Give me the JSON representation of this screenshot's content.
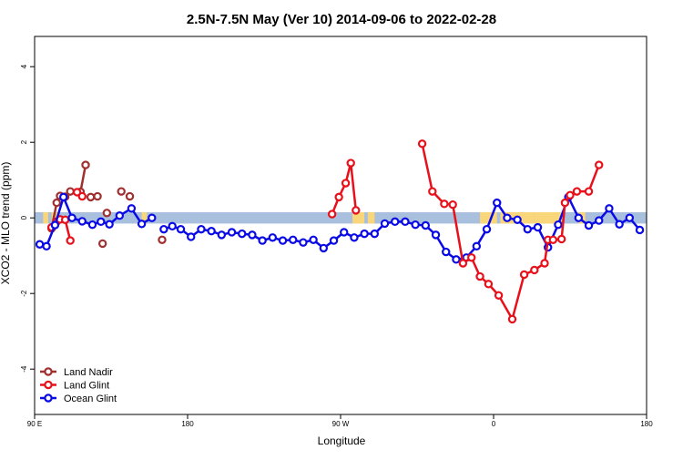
{
  "chart_data": {
    "type": "line",
    "title": "2.5N-7.5N May (Ver 10)   2014-09-06 to 2022-02-28",
    "xlabel": "Longitude",
    "ylabel": "XCO2 - MLO trend (ppm)",
    "xlim": [
      90,
      450
    ],
    "ylim": [
      -5.2,
      4.8
    ],
    "x_ticks": [
      {
        "value": 90,
        "label": "90 E"
      },
      {
        "value": 180,
        "label": "180"
      },
      {
        "value": 270,
        "label": "90 W"
      },
      {
        "value": 360,
        "label": "0"
      },
      {
        "value": 450,
        "label": "180"
      }
    ],
    "y_ticks": [
      {
        "value": -4,
        "label": "-4"
      },
      {
        "value": -2,
        "label": "-2"
      },
      {
        "value": 0,
        "label": "0"
      },
      {
        "value": 2,
        "label": "2"
      },
      {
        "value": 4,
        "label": "4"
      }
    ],
    "grid": false,
    "legend_position": "bottom-left",
    "background_band": {
      "y_min": -0.15,
      "y_max": 0.15,
      "ocean_color": "#a8bfdd",
      "land_color": "#f9d67a"
    },
    "land_segments": [
      [
        95,
        98
      ],
      [
        100,
        104
      ],
      [
        153,
        156
      ],
      [
        277,
        284
      ],
      [
        286,
        290
      ],
      [
        352,
        362
      ],
      [
        364,
        384
      ],
      [
        384,
        400
      ],
      [
        410,
        414
      ],
      [
        452,
        456
      ]
    ],
    "series": [
      {
        "name": "Land Nadir",
        "color": "#a0302f",
        "x": [
          100,
          103,
          105,
          108,
          111,
          117,
          120,
          123,
          127,
          130,
          132.5,
          141,
          146,
          165
        ],
        "y": [
          -0.28,
          0.4,
          0.58,
          0.56,
          0.7,
          0.69,
          1.4,
          0.55,
          0.57,
          -0.68,
          0.13,
          0.7,
          0.57,
          -0.58
        ],
        "segments": [
          [
            100,
            103
          ],
          [
            105,
            108,
            111
          ],
          [
            117,
            120
          ],
          [
            123,
            127
          ]
        ]
      },
      {
        "name": "Land Glint",
        "color": "#e8101a",
        "x": [
          100,
          103,
          105,
          108,
          111,
          115,
          118,
          265,
          269,
          273,
          276,
          279
        ],
        "y": [
          -0.25,
          -0.1,
          -0.04,
          -0.05,
          -0.6,
          0.68,
          0.57,
          0.1,
          0.55,
          0.92,
          1.45,
          0.2
        ],
        "segments": [
          [
            100,
            103
          ],
          [
            105,
            108,
            111
          ],
          [
            115,
            118
          ],
          [
            265,
            269,
            273,
            276,
            279
          ]
        ]
      },
      {
        "name": "Ocean Glint",
        "color": "#0a0ae6",
        "x": [
          93,
          97,
          102,
          107,
          112,
          118,
          124,
          129,
          134,
          140,
          147,
          153,
          159
        ],
        "y": [
          -0.7,
          -0.75,
          -0.19,
          0.55,
          0.0,
          -0.09,
          -0.18,
          -0.1,
          -0.17,
          0.06,
          0.25,
          -0.16,
          0.0
        ],
        "segments": [
          [
            93,
            97,
            102,
            107,
            112,
            118,
            124,
            129,
            134,
            140,
            147,
            153,
            159
          ]
        ]
      }
    ],
    "extra_points": {
      "land_nadir_lon": [
        318,
        324,
        331,
        336,
        342,
        347,
        352,
        357,
        363,
        371,
        378,
        384,
        390,
        392,
        395,
        400,
        402,
        405,
        409,
        416,
        422
      ],
      "land_nadir_xco2": [
        1.96,
        0.7,
        0.37,
        0.35,
        -1.2,
        -1.05,
        -1.55,
        -1.75,
        -2.05,
        -2.68,
        -1.5,
        -1.38,
        -1.2,
        -0.58,
        -0.58,
        -0.56,
        0.4,
        0.6,
        0.7,
        0.7,
        1.4
      ],
      "ocean_glint_lon": [
        166,
        171,
        176,
        182,
        188,
        194,
        200,
        206,
        212,
        218,
        224,
        230,
        236,
        242,
        248,
        254,
        260,
        266,
        272,
        278,
        284,
        290,
        296,
        302,
        308,
        314,
        320,
        326,
        332,
        338,
        344,
        350,
        356,
        362,
        368,
        374,
        380,
        386,
        392,
        398,
        404,
        410,
        416,
        422,
        428,
        434,
        440,
        446
      ],
      "ocean_glint_xco2": [
        -0.3,
        -0.22,
        -0.3,
        -0.5,
        -0.3,
        -0.35,
        -0.45,
        -0.38,
        -0.42,
        -0.45,
        -0.6,
        -0.52,
        -0.6,
        -0.58,
        -0.65,
        -0.58,
        -0.8,
        -0.6,
        -0.38,
        -0.52,
        -0.42,
        -0.42,
        -0.15,
        -0.1,
        -0.1,
        -0.18,
        -0.2,
        -0.45,
        -0.9,
        -1.1,
        -1.05,
        -0.75,
        -0.3,
        0.4,
        0.0,
        -0.05,
        -0.3,
        -0.25,
        -0.78,
        -0.18,
        0.55,
        0.0,
        -0.2,
        -0.07,
        0.25,
        -0.17,
        0.0,
        -0.32
      ]
    }
  }
}
